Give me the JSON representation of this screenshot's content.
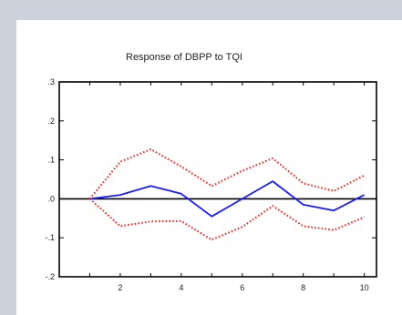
{
  "chart_data": {
    "type": "line",
    "title": "Response of DBPP to TQI",
    "xlabel": "",
    "ylabel": "",
    "xlim": [
      0,
      10.4
    ],
    "ylim": [
      -0.2,
      0.3
    ],
    "x_ticks": [
      2,
      4,
      6,
      8,
      10
    ],
    "y_ticks": [
      0.3,
      0.2,
      0.1,
      0.0,
      -0.1,
      -0.2
    ],
    "y_tick_labels": [
      ".3",
      ".2",
      ".1",
      ".0",
      "-.1",
      "-.2"
    ],
    "x": [
      1,
      2,
      3,
      4,
      5,
      6,
      7,
      8,
      9,
      10
    ],
    "series": [
      {
        "values": [
          0.0,
          0.01,
          0.033,
          0.013,
          -0.045,
          0.0,
          0.045,
          -0.015,
          -0.03,
          0.01
        ],
        "color": "#1a1aff",
        "style": "solid"
      },
      {
        "values": [
          0.0,
          0.095,
          0.127,
          0.083,
          0.033,
          0.072,
          0.104,
          0.04,
          0.02,
          0.06
        ],
        "color": "#ff2020",
        "style": "dotted"
      },
      {
        "values": [
          0.0,
          -0.07,
          -0.058,
          -0.057,
          -0.105,
          -0.072,
          -0.018,
          -0.07,
          -0.08,
          -0.047
        ],
        "color": "#ff2020",
        "style": "dotted"
      }
    ],
    "zero_line": true,
    "grid": false,
    "legend": "none"
  }
}
